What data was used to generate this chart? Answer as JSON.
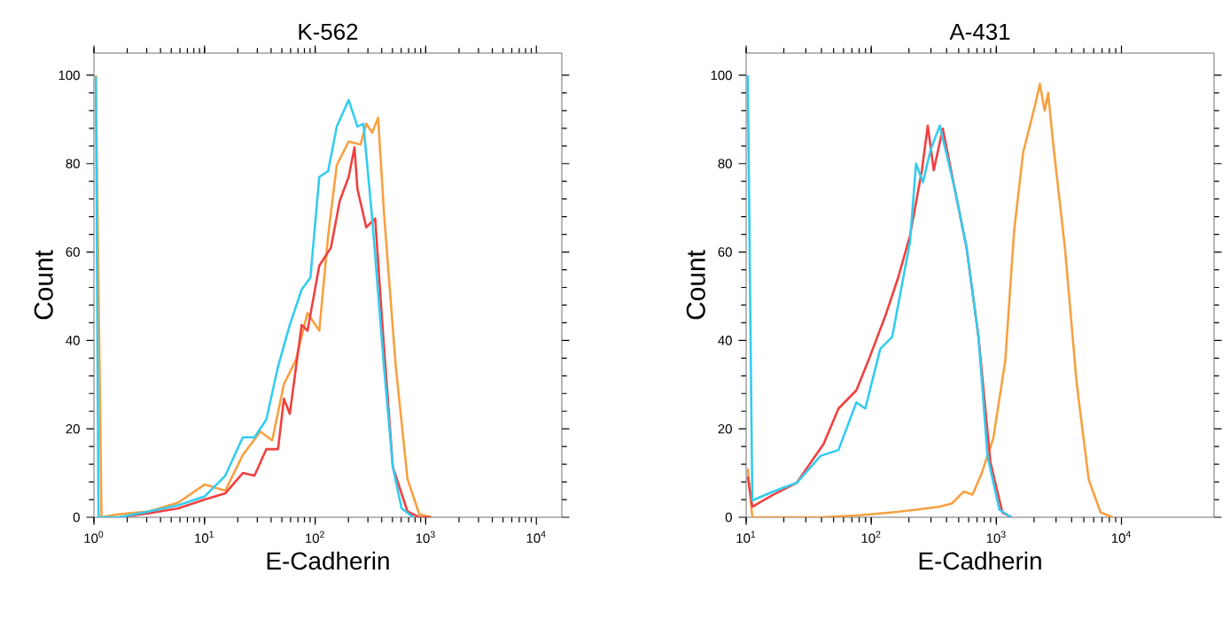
{
  "chart_data": [
    {
      "type": "line",
      "title": "K-562",
      "xlabel": "E-Cadherin",
      "ylabel": "Count",
      "log": "x",
      "grid": false,
      "xlim": [
        1,
        17000
      ],
      "ylim": [
        0,
        105
      ],
      "xticks": [
        {
          "value": 1,
          "label": "10$^{0}$"
        },
        {
          "value": 10,
          "label": "10$^{1}$"
        },
        {
          "value": 100,
          "label": "10$^{2}$"
        },
        {
          "value": 1000,
          "label": "10$^{3}$"
        },
        {
          "value": 10000,
          "label": "10$^{4}$"
        }
      ],
      "yticks": [
        0,
        20,
        40,
        60,
        80,
        100
      ],
      "series": [
        {
          "color": "#f8a040",
          "x": [
            1.04,
            1.17,
            1.69,
            3.13,
            5.77,
            10,
            15.4,
            22.2,
            32,
            40.9,
            52.2,
            66.7,
            85.3,
            109,
            131,
            157,
            201,
            257,
            290,
            328,
            371,
            419,
            536,
            684,
            873,
            1117
          ],
          "values": [
            100,
            0,
            0.7,
            1.3,
            3.3,
            7.4,
            6,
            14.1,
            19.4,
            17.4,
            30.1,
            35.5,
            46.2,
            42.2,
            63.6,
            79.7,
            85,
            84.3,
            89,
            87,
            90.4,
            68.9,
            34.1,
            8.7,
            0.7,
            0
          ]
        },
        {
          "color": "#f04040",
          "x": [
            1.69,
            3.13,
            5.77,
            10,
            15.4,
            22.2,
            28.3,
            36.2,
            46.2,
            52.2,
            59.0,
            75.5,
            85.3,
            109,
            139,
            167,
            201,
            227,
            241,
            290,
            349,
            409,
            504,
            684,
            873,
            1117
          ],
          "values": [
            0,
            0.9,
            2,
            4,
            5.4,
            10,
            9.4,
            15.4,
            15.4,
            26.8,
            23.4,
            43.5,
            42.2,
            56.9,
            61,
            71.6,
            77,
            83.7,
            74.3,
            65.6,
            67.6,
            42.2,
            11.4,
            1.3,
            0,
            0
          ]
        },
        {
          "color": "#33ccf0",
          "x": [
            1.04,
            1.1,
            1.69,
            3.13,
            5.77,
            10,
            15.4,
            22.2,
            28.3,
            36.2,
            46.2,
            59.0,
            75.5,
            90.6,
            109,
            131,
            157,
            201,
            241,
            273,
            328,
            419,
            504,
            605,
            773
          ],
          "values": [
            99.7,
            0,
            0,
            1.3,
            2.7,
            4.7,
            9.4,
            18.1,
            18.1,
            22.1,
            34.1,
            43.5,
            51.5,
            54.2,
            77,
            78.3,
            88.4,
            94.4,
            88.4,
            89,
            67.6,
            34.1,
            11.4,
            2,
            0
          ]
        }
      ]
    },
    {
      "type": "line",
      "title": "A-431",
      "xlabel": "E-Cadherin",
      "ylabel": "Count",
      "log": "x",
      "grid": false,
      "xlim": [
        10,
        55000
      ],
      "ylim": [
        0,
        105
      ],
      "xticks": [
        {
          "value": 10,
          "label": "10$^{1}$"
        },
        {
          "value": 100,
          "label": "10$^{2}$"
        },
        {
          "value": 1000,
          "label": "10$^{3}$"
        },
        {
          "value": 10000,
          "label": "10$^{4}$"
        }
      ],
      "yticks": [
        0,
        20,
        40,
        60,
        80,
        100
      ],
      "series": [
        {
          "color": "#f8a040",
          "x": [
            10.3,
            11.2,
            39.4,
            76.0,
            147,
            228,
            353,
            440,
            548,
            645,
            760,
            946,
            1178,
            1389,
            1637,
            2042,
            2228,
            2432,
            2596,
            2833,
            3532,
            4398,
            5477,
            6810,
            8492
          ],
          "values": [
            11,
            0,
            0,
            0.4,
            1.1,
            1.7,
            2.4,
            3.1,
            5.8,
            5.1,
            9.8,
            17.9,
            35.4,
            65,
            82.5,
            93.3,
            98,
            92,
            96,
            85,
            61,
            30,
            8.5,
            1.1,
            0
          ]
        },
        {
          "color": "#f04040",
          "x": [
            10.3,
            11.2,
            16.4,
            25.4,
            41.6,
            54.7,
            76.0,
            94.7,
            132,
            164,
            204,
            254,
            283,
            316,
            373,
            464,
            578,
            720,
            896,
            1117,
            1316
          ],
          "values": [
            9.2,
            2.4,
            5.1,
            7.8,
            16.6,
            24.6,
            28.7,
            35.4,
            46.2,
            54.2,
            63.7,
            78.5,
            88.6,
            78.5,
            87.9,
            74.4,
            61,
            40.8,
            12.5,
            1.1,
            0
          ]
        },
        {
          "color": "#33ccf0",
          "x": [
            10.3,
            11.2,
            16.4,
            25.4,
            39.4,
            54.7,
            76.0,
            89.6,
            118,
            147,
            173,
            204,
            228,
            259,
            299,
            353,
            464,
            578,
            720,
            849,
            1057,
            1316
          ],
          "values": [
            100,
            3.8,
            5.8,
            7.8,
            13.9,
            15.2,
            26,
            24.6,
            38.1,
            40.8,
            51.5,
            62.3,
            80,
            75.8,
            83.2,
            88.6,
            74.4,
            61,
            40.8,
            13.9,
            1.7,
            0
          ]
        }
      ]
    }
  ]
}
